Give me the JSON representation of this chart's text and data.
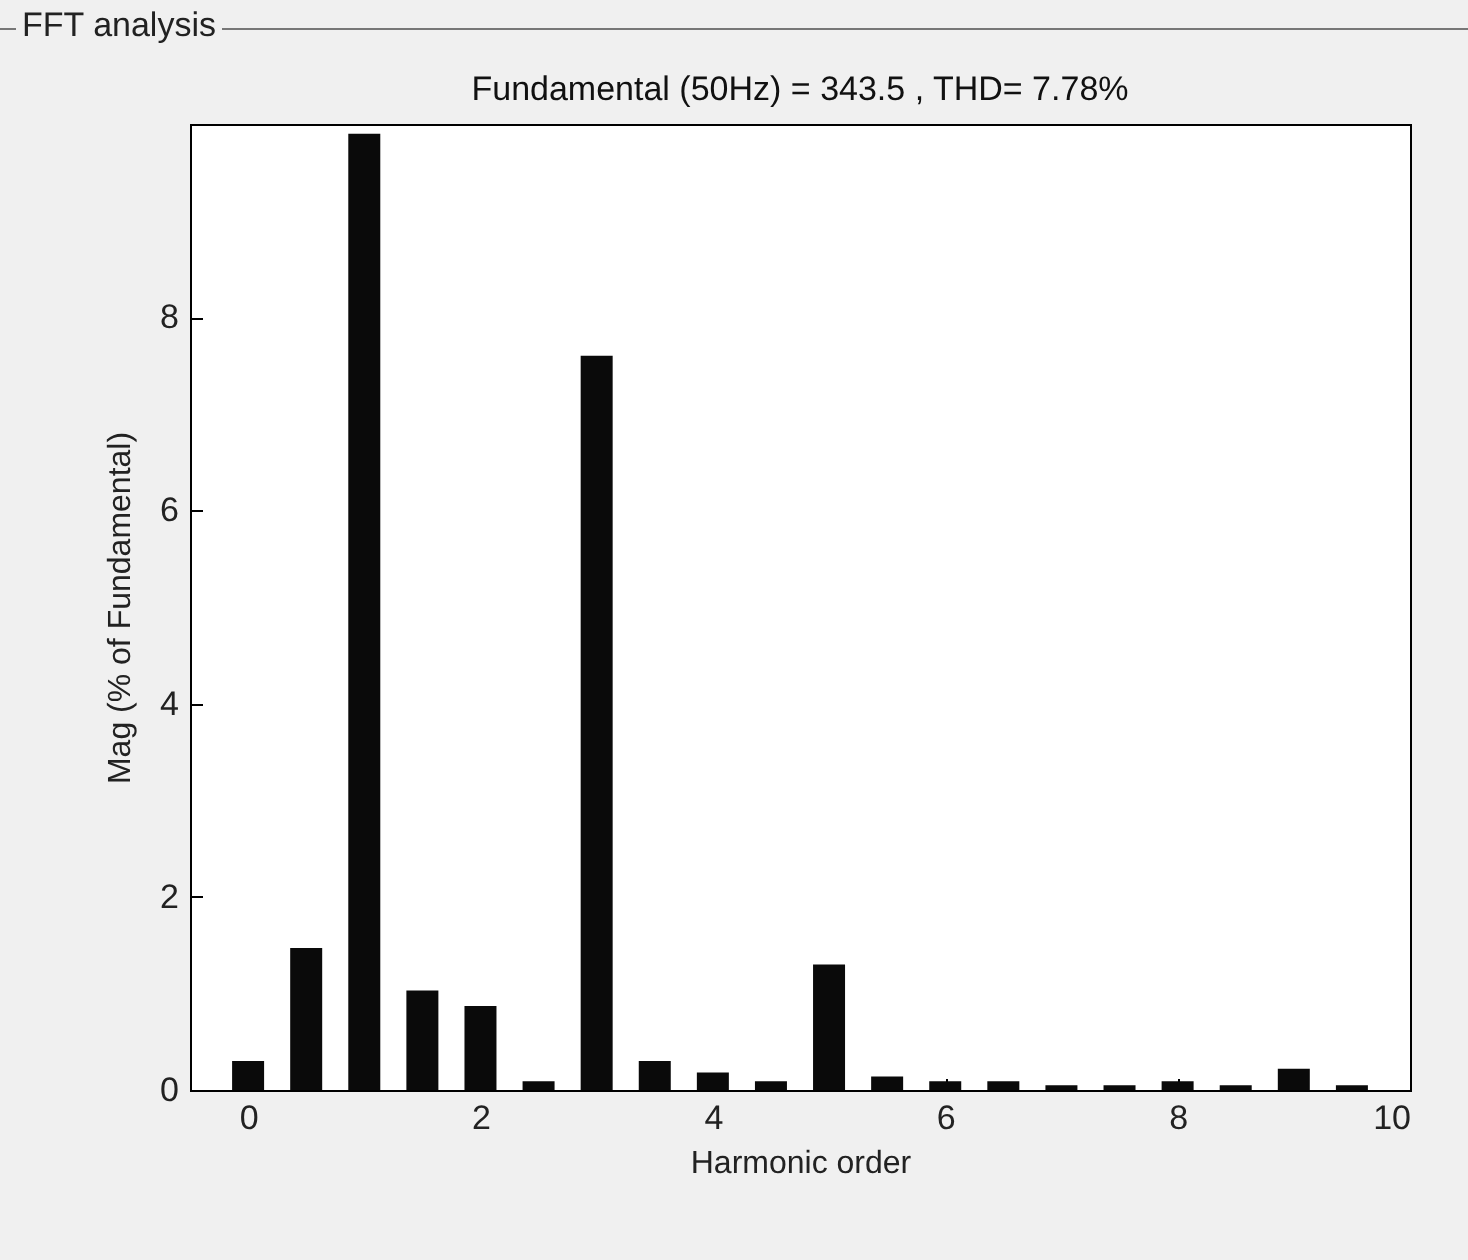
{
  "chart_data": {
    "type": "bar",
    "title": "FFT analysis",
    "subtitle": "Fundamental (50Hz) = 343.5 , THD= 7.78%",
    "xlabel": "Harmonic order",
    "ylabel": "Mag (% of Fundamental)",
    "x": [
      0,
      0.5,
      1,
      1.5,
      2,
      2.5,
      3,
      3.5,
      4,
      4.5,
      5,
      5.5,
      6,
      6.5,
      7,
      7.5,
      8,
      8.5,
      9,
      9.5
    ],
    "values": [
      0.3,
      1.47,
      9.9,
      1.03,
      0.87,
      0.09,
      7.6,
      0.3,
      0.18,
      0.09,
      1.3,
      0.14,
      0.09,
      0.09,
      0.05,
      0.05,
      0.09,
      0.05,
      0.22,
      0.05
    ],
    "color": "#0a0a0a",
    "xlim": [
      -0.5,
      10
    ],
    "xticks": [
      0,
      2,
      4,
      6,
      8,
      10
    ],
    "ylim": [
      0,
      10
    ],
    "yticks": [
      0,
      2,
      4,
      6,
      8
    ],
    "grid": false
  }
}
